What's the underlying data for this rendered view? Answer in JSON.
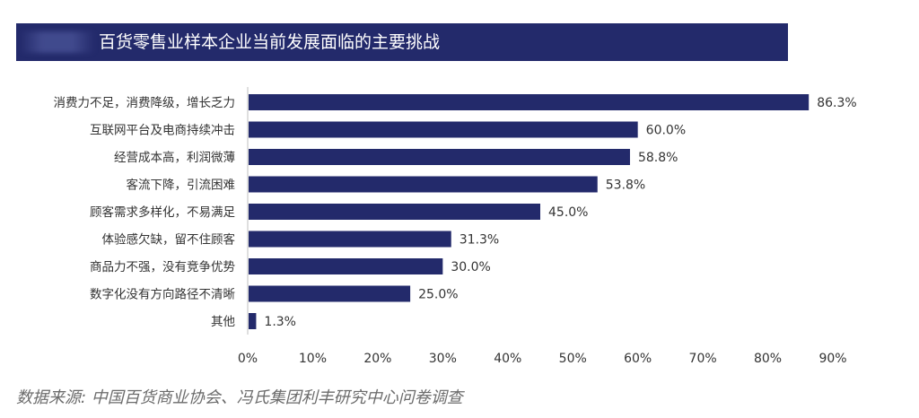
{
  "title": "百货零售业样本企业当前发展面临的主要挑战",
  "source": "数据来源: 中国百货商业协会、冯氏集团利丰研究中心问卷调查",
  "colors": {
    "bar": "#232a6b",
    "title_bg": "#232a6b",
    "text": "#333333"
  },
  "chart_data": {
    "type": "bar",
    "orientation": "horizontal",
    "title": "百货零售业样本企业当前发展面临的主要挑战",
    "categories": [
      "消费力不足，消费降级，增长乏力",
      "互联网平台及电商持续冲击",
      "经营成本高，利润微薄",
      "客流下降，引流困难",
      "顾客需求多样化，不易满足",
      "体验感欠缺，留不住顾客",
      "商品力不强，没有竞争优势",
      "数字化没有方向路径不清晰",
      "其他"
    ],
    "values": [
      86.3,
      60.0,
      58.8,
      53.8,
      45.0,
      31.3,
      30.0,
      25.0,
      1.3
    ],
    "value_labels": [
      "86.3%",
      "60.0%",
      "58.8%",
      "53.8%",
      "45.0%",
      "31.3%",
      "30.0%",
      "25.0%",
      "1.3%"
    ],
    "xticks": [
      "0%",
      "10%",
      "20%",
      "30%",
      "40%",
      "50%",
      "60%",
      "70%",
      "80%",
      "90%"
    ],
    "xlim": [
      0,
      90
    ],
    "xlabel": "",
    "ylabel": "",
    "grid": false
  }
}
